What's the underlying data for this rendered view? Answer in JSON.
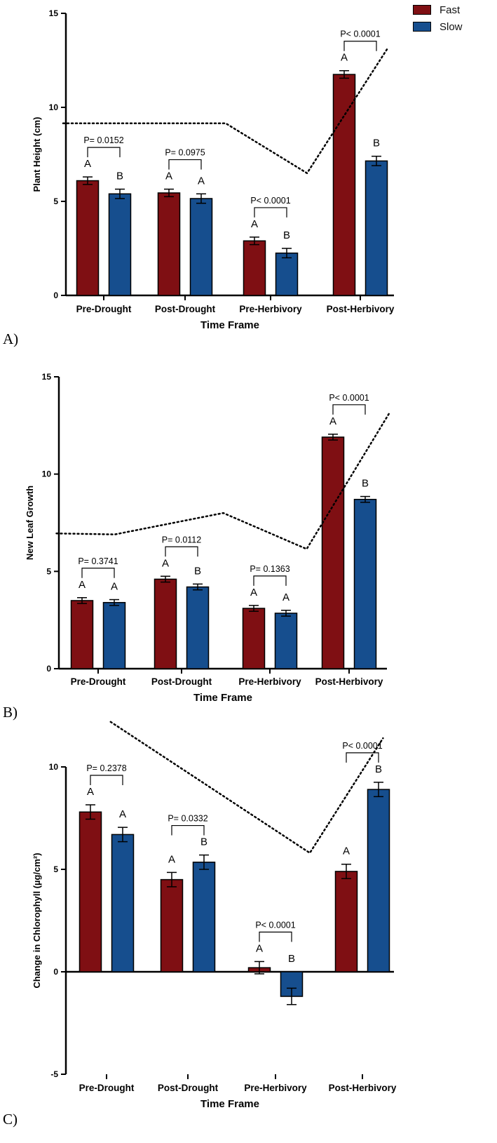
{
  "legend": [
    {
      "label": "Fast",
      "color": "#7f0f13"
    },
    {
      "label": "Slow",
      "color": "#164e8e"
    }
  ],
  "chart_data": [
    {
      "type": "bar",
      "panel": "A)",
      "ylabel": "Plant Height (cm)",
      "xlabel": "Time Frame",
      "ylim": [
        0,
        15
      ],
      "yticks": [
        0,
        5,
        10,
        15
      ],
      "categories": [
        "Pre-Drought",
        "Post-Drought",
        "Pre-Herbivory",
        "Post-Herbivory"
      ],
      "series": [
        {
          "name": "Fast",
          "values": [
            6.1,
            5.45,
            2.9,
            11.75
          ],
          "errors": [
            0.2,
            0.2,
            0.2,
            0.2
          ]
        },
        {
          "name": "Slow",
          "values": [
            5.4,
            5.15,
            2.25,
            7.15
          ],
          "errors": [
            0.25,
            0.25,
            0.25,
            0.25
          ]
        }
      ],
      "letters": [
        [
          "A",
          "B"
        ],
        [
          "A",
          "A"
        ],
        [
          "A",
          "B"
        ],
        [
          "A",
          "B"
        ]
      ],
      "pvalues": [
        "P= 0.0152",
        "P= 0.0975",
        "P< 0.0001",
        "P< 0.0001"
      ],
      "trend": [
        [
          -0.5,
          9.15
        ],
        [
          0.5,
          9.15
        ],
        [
          1.5,
          9.15
        ],
        [
          2.5,
          6.5
        ],
        [
          3.5,
          13.2
        ]
      ]
    },
    {
      "type": "bar",
      "panel": "B)",
      "ylabel": "New Leaf Growth",
      "xlabel": "Time Frame",
      "ylim": [
        0,
        15
      ],
      "yticks": [
        0,
        5,
        10,
        15
      ],
      "categories": [
        "Pre-Drought",
        "Post-Drought",
        "Pre-Herbivory",
        "Post-Herbivory"
      ],
      "series": [
        {
          "name": "Fast",
          "values": [
            3.5,
            4.6,
            3.1,
            11.9
          ],
          "errors": [
            0.15,
            0.15,
            0.15,
            0.15
          ]
        },
        {
          "name": "Slow",
          "values": [
            3.4,
            4.2,
            2.85,
            8.7
          ],
          "errors": [
            0.15,
            0.15,
            0.15,
            0.15
          ]
        }
      ],
      "letters": [
        [
          "A",
          "A"
        ],
        [
          "A",
          "B"
        ],
        [
          "A",
          "A"
        ],
        [
          "A",
          "B"
        ]
      ],
      "pvalues": [
        "P= 0.3741",
        "P= 0.0112",
        "P= 0.1363",
        "P< 0.0001"
      ],
      "trend": [
        [
          -0.5,
          6.95
        ],
        [
          0.2,
          6.9
        ],
        [
          1.5,
          8.0
        ],
        [
          2.5,
          6.15
        ],
        [
          3.5,
          13.2
        ]
      ]
    },
    {
      "type": "bar",
      "panel": "C)",
      "ylabel": "Change in Chlorophyll (µg/cm²)",
      "xlabel": "Time Frame",
      "ylim": [
        -5,
        10
      ],
      "yticks": [
        -5,
        0,
        5,
        10
      ],
      "categories": [
        "Pre-Drought",
        "Post-Drought",
        "Pre-Herbivory",
        "Post-Herbivory"
      ],
      "series": [
        {
          "name": "Fast",
          "values": [
            7.8,
            4.5,
            0.2,
            4.9
          ],
          "errors": [
            0.35,
            0.35,
            0.3,
            0.35
          ]
        },
        {
          "name": "Slow",
          "values": [
            6.7,
            5.35,
            -1.2,
            8.9
          ],
          "errors": [
            0.35,
            0.35,
            0.4,
            0.35
          ]
        }
      ],
      "letters": [
        [
          "A",
          "A"
        ],
        [
          "A",
          "B"
        ],
        [
          "A",
          "B"
        ],
        [
          "A",
          "B"
        ]
      ],
      "pvalues": [
        "P= 0.2378",
        "P= 0.0332",
        "P< 0.0001",
        "P< 0.0001"
      ],
      "trend": [
        [
          0.05,
          12.2
        ],
        [
          2.5,
          5.8
        ],
        [
          3.4,
          11.4
        ]
      ]
    }
  ]
}
